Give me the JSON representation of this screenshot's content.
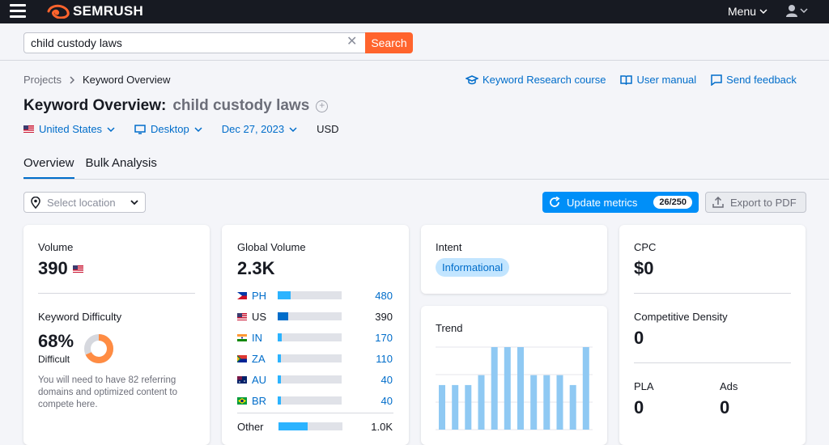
{
  "brand": {
    "name": "SEMRUSH",
    "accent": "#ff642d"
  },
  "topbar": {
    "menu_label": "Menu"
  },
  "search": {
    "value": "child custody laws",
    "button_label": "Search"
  },
  "breadcrumb": {
    "root": "Projects",
    "current": "Keyword Overview"
  },
  "help_links": {
    "course": "Keyword Research course",
    "manual": "User manual",
    "feedback": "Send feedback"
  },
  "page": {
    "title": "Keyword Overview:",
    "keyword": "child custody laws"
  },
  "filters": {
    "country": "United States",
    "device": "Desktop",
    "date": "Dec 27, 2023",
    "currency": "USD"
  },
  "tabs": [
    {
      "label": "Overview"
    },
    {
      "label": "Bulk Analysis"
    }
  ],
  "toolbar": {
    "location_placeholder": "Select location",
    "update_label": "Update metrics",
    "update_count": "26/250",
    "export_label": "Export to PDF"
  },
  "volume_card": {
    "volume_label": "Volume",
    "volume_value": "390",
    "kd_label": "Keyword Difficulty",
    "kd_value": "68%",
    "kd_percent": 68,
    "kd_level": "Difficult",
    "kd_note": "You will need to have 82 referring domains and optimized content to compete here."
  },
  "global_card": {
    "label": "Global Volume",
    "value": "2.3K",
    "countries": [
      {
        "code": "PH",
        "value": "480",
        "share": 0.21
      },
      {
        "code": "US",
        "value": "390",
        "share": 0.17
      },
      {
        "code": "IN",
        "value": "170",
        "share": 0.07
      },
      {
        "code": "ZA",
        "value": "110",
        "share": 0.05
      },
      {
        "code": "AU",
        "value": "40",
        "share": 0.03
      },
      {
        "code": "BR",
        "value": "40",
        "share": 0.03
      }
    ],
    "other_label": "Other",
    "other_value": "1.0K",
    "other_share": 0.46
  },
  "intent_card": {
    "label": "Intent",
    "badge": "Informational"
  },
  "trend_card": {
    "label": "Trend",
    "values": [
      0.54,
      0.54,
      0.54,
      0.66,
      1.0,
      1.0,
      1.0,
      0.66,
      0.66,
      0.66,
      0.54,
      1.0
    ]
  },
  "cpc_card": {
    "cpc_label": "CPC",
    "cpc_value": "$0",
    "density_label": "Competitive Density",
    "density_value": "0",
    "pla_label": "PLA",
    "pla_value": "0",
    "ads_label": "Ads",
    "ads_value": "0"
  }
}
